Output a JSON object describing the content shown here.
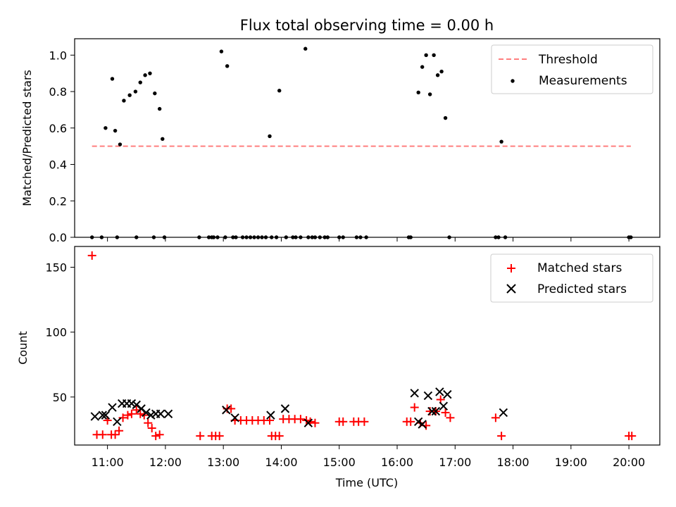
{
  "title": "Flux total observing time = 0.00 h",
  "chart_data": [
    {
      "type": "scatter",
      "ylabel": "Matched/Predicted stars",
      "ylim": [
        0,
        1.09
      ],
      "yticks": [
        "0.0",
        "0.2",
        "0.4",
        "0.6",
        "0.8",
        "1.0"
      ],
      "legend_position": "top-right",
      "legend": [
        "Threshold",
        "Measurements"
      ],
      "threshold": {
        "name": "Threshold",
        "value": 0.5,
        "x_start": "10:44",
        "x_end": "20:02",
        "color": "#ff7f7f",
        "style": "dashed"
      },
      "series": [
        {
          "name": "Measurements",
          "color": "#000000",
          "marker": "dot",
          "x": [
            "10:44",
            "10:54",
            "10:58",
            "11:05",
            "11:08",
            "11:13",
            "11:17",
            "11:23",
            "11:29",
            "11:34",
            "11:39",
            "11:44",
            "11:49",
            "11:54",
            "11:57",
            "11:59",
            "11:10",
            "11:30",
            "11:48",
            "12:35",
            "12:45",
            "12:48",
            "12:50",
            "12:54",
            "12:58",
            "13:02",
            "13:04",
            "13:10",
            "13:13",
            "13:20",
            "13:24",
            "13:28",
            "13:32",
            "13:36",
            "13:40",
            "13:44",
            "13:48",
            "13:50",
            "13:55",
            "13:58",
            "14:05",
            "14:12",
            "14:15",
            "14:20",
            "14:25",
            "14:28",
            "14:32",
            "14:35",
            "14:40",
            "14:45",
            "14:48",
            "15:00",
            "15:04",
            "15:18",
            "15:22",
            "15:28",
            "16:12",
            "16:14",
            "16:22",
            "16:26",
            "16:30",
            "16:34",
            "16:38",
            "16:42",
            "16:46",
            "16:50",
            "16:54",
            "17:42",
            "17:45",
            "17:48",
            "17:52",
            "20:00",
            "20:02"
          ],
          "y": [
            0.0,
            0.0,
            0.6,
            0.87,
            0.585,
            0.51,
            0.75,
            0.78,
            0.8,
            0.85,
            0.89,
            0.9,
            0.79,
            0.705,
            0.54,
            0.0,
            0.0,
            0.0,
            0.0,
            0.0,
            0.0,
            0.0,
            0.0,
            0.0,
            1.02,
            0.0,
            0.94,
            0.0,
            0.0,
            0.0,
            0.0,
            0.0,
            0.0,
            0.0,
            0.0,
            0.0,
            0.555,
            0.0,
            0.0,
            0.805,
            0.0,
            0.0,
            0.0,
            0.0,
            1.035,
            0.0,
            0.0,
            0.0,
            0.0,
            0.0,
            0.0,
            0.0,
            0.0,
            0.0,
            0.0,
            0.0,
            0.0,
            0.0,
            0.795,
            0.935,
            1.0,
            0.785,
            1.0,
            0.89,
            0.91,
            0.655,
            0.0,
            0.0,
            0.0,
            0.525,
            0.0,
            0.0,
            0.0
          ]
        }
      ]
    },
    {
      "type": "scatter",
      "xlabel": "Time (UTC)",
      "ylabel": "Count",
      "ylim": [
        13,
        166
      ],
      "yticks": [
        "50",
        "100",
        "150"
      ],
      "xticks": [
        "11:00",
        "12:00",
        "13:00",
        "14:00",
        "15:00",
        "16:00",
        "17:00",
        "18:00",
        "19:00",
        "20:00"
      ],
      "x_range": [
        "10:26",
        "20:32"
      ],
      "legend_position": "top-right",
      "legend": [
        "Matched stars",
        "Predicted stars"
      ],
      "series": [
        {
          "name": "Matched stars",
          "color": "#ff0000",
          "marker": "plus",
          "x": [
            "10:44",
            "10:49",
            "10:55",
            "11:00",
            "11:04",
            "11:08",
            "11:12",
            "11:16",
            "11:21",
            "11:25",
            "11:30",
            "11:34",
            "11:38",
            "11:42",
            "11:46",
            "11:50",
            "11:54",
            "12:36",
            "12:48",
            "12:52",
            "12:56",
            "13:04",
            "13:08",
            "13:12",
            "13:18",
            "13:24",
            "13:30",
            "13:36",
            "13:42",
            "13:48",
            "13:50",
            "13:54",
            "13:58",
            "14:02",
            "14:08",
            "14:14",
            "14:20",
            "14:26",
            "14:30",
            "14:35",
            "15:00",
            "15:04",
            "15:15",
            "15:20",
            "15:26",
            "16:10",
            "16:14",
            "16:18",
            "16:24",
            "16:30",
            "16:34",
            "16:40",
            "16:45",
            "16:50",
            "16:55",
            "17:42",
            "17:48",
            "20:00",
            "20:03"
          ],
          "y": [
            159,
            21,
            21,
            32,
            21,
            21,
            24,
            34,
            36,
            37,
            40,
            37,
            36,
            30,
            26,
            20,
            21,
            20,
            20,
            20,
            20,
            41,
            41,
            32,
            32,
            32,
            32,
            32,
            32,
            32,
            20,
            20,
            20,
            33,
            33,
            33,
            33,
            32,
            31,
            30,
            31,
            31,
            31,
            31,
            31,
            31,
            31,
            42,
            30,
            28,
            39,
            39,
            48,
            38,
            34,
            34,
            20,
            20,
            20
          ]
        },
        {
          "name": "Predicted stars",
          "color": "#000000",
          "marker": "x",
          "x": [
            "10:47",
            "10:55",
            "10:58",
            "11:05",
            "11:10",
            "11:15",
            "11:20",
            "11:25",
            "11:30",
            "11:35",
            "11:40",
            "11:45",
            "11:50",
            "11:55",
            "12:03",
            "13:03",
            "13:12",
            "13:49",
            "14:04",
            "14:28",
            "16:18",
            "16:22",
            "16:26",
            "16:32",
            "16:36",
            "16:40",
            "16:44",
            "16:48",
            "16:52",
            "17:50"
          ],
          "y": [
            35,
            36,
            36,
            42,
            31,
            45,
            45,
            45,
            44,
            41,
            38,
            36,
            37,
            37,
            37,
            40,
            34,
            36,
            41,
            30,
            53,
            31,
            29,
            51,
            39,
            39,
            54,
            43,
            52,
            38
          ]
        }
      ]
    }
  ]
}
